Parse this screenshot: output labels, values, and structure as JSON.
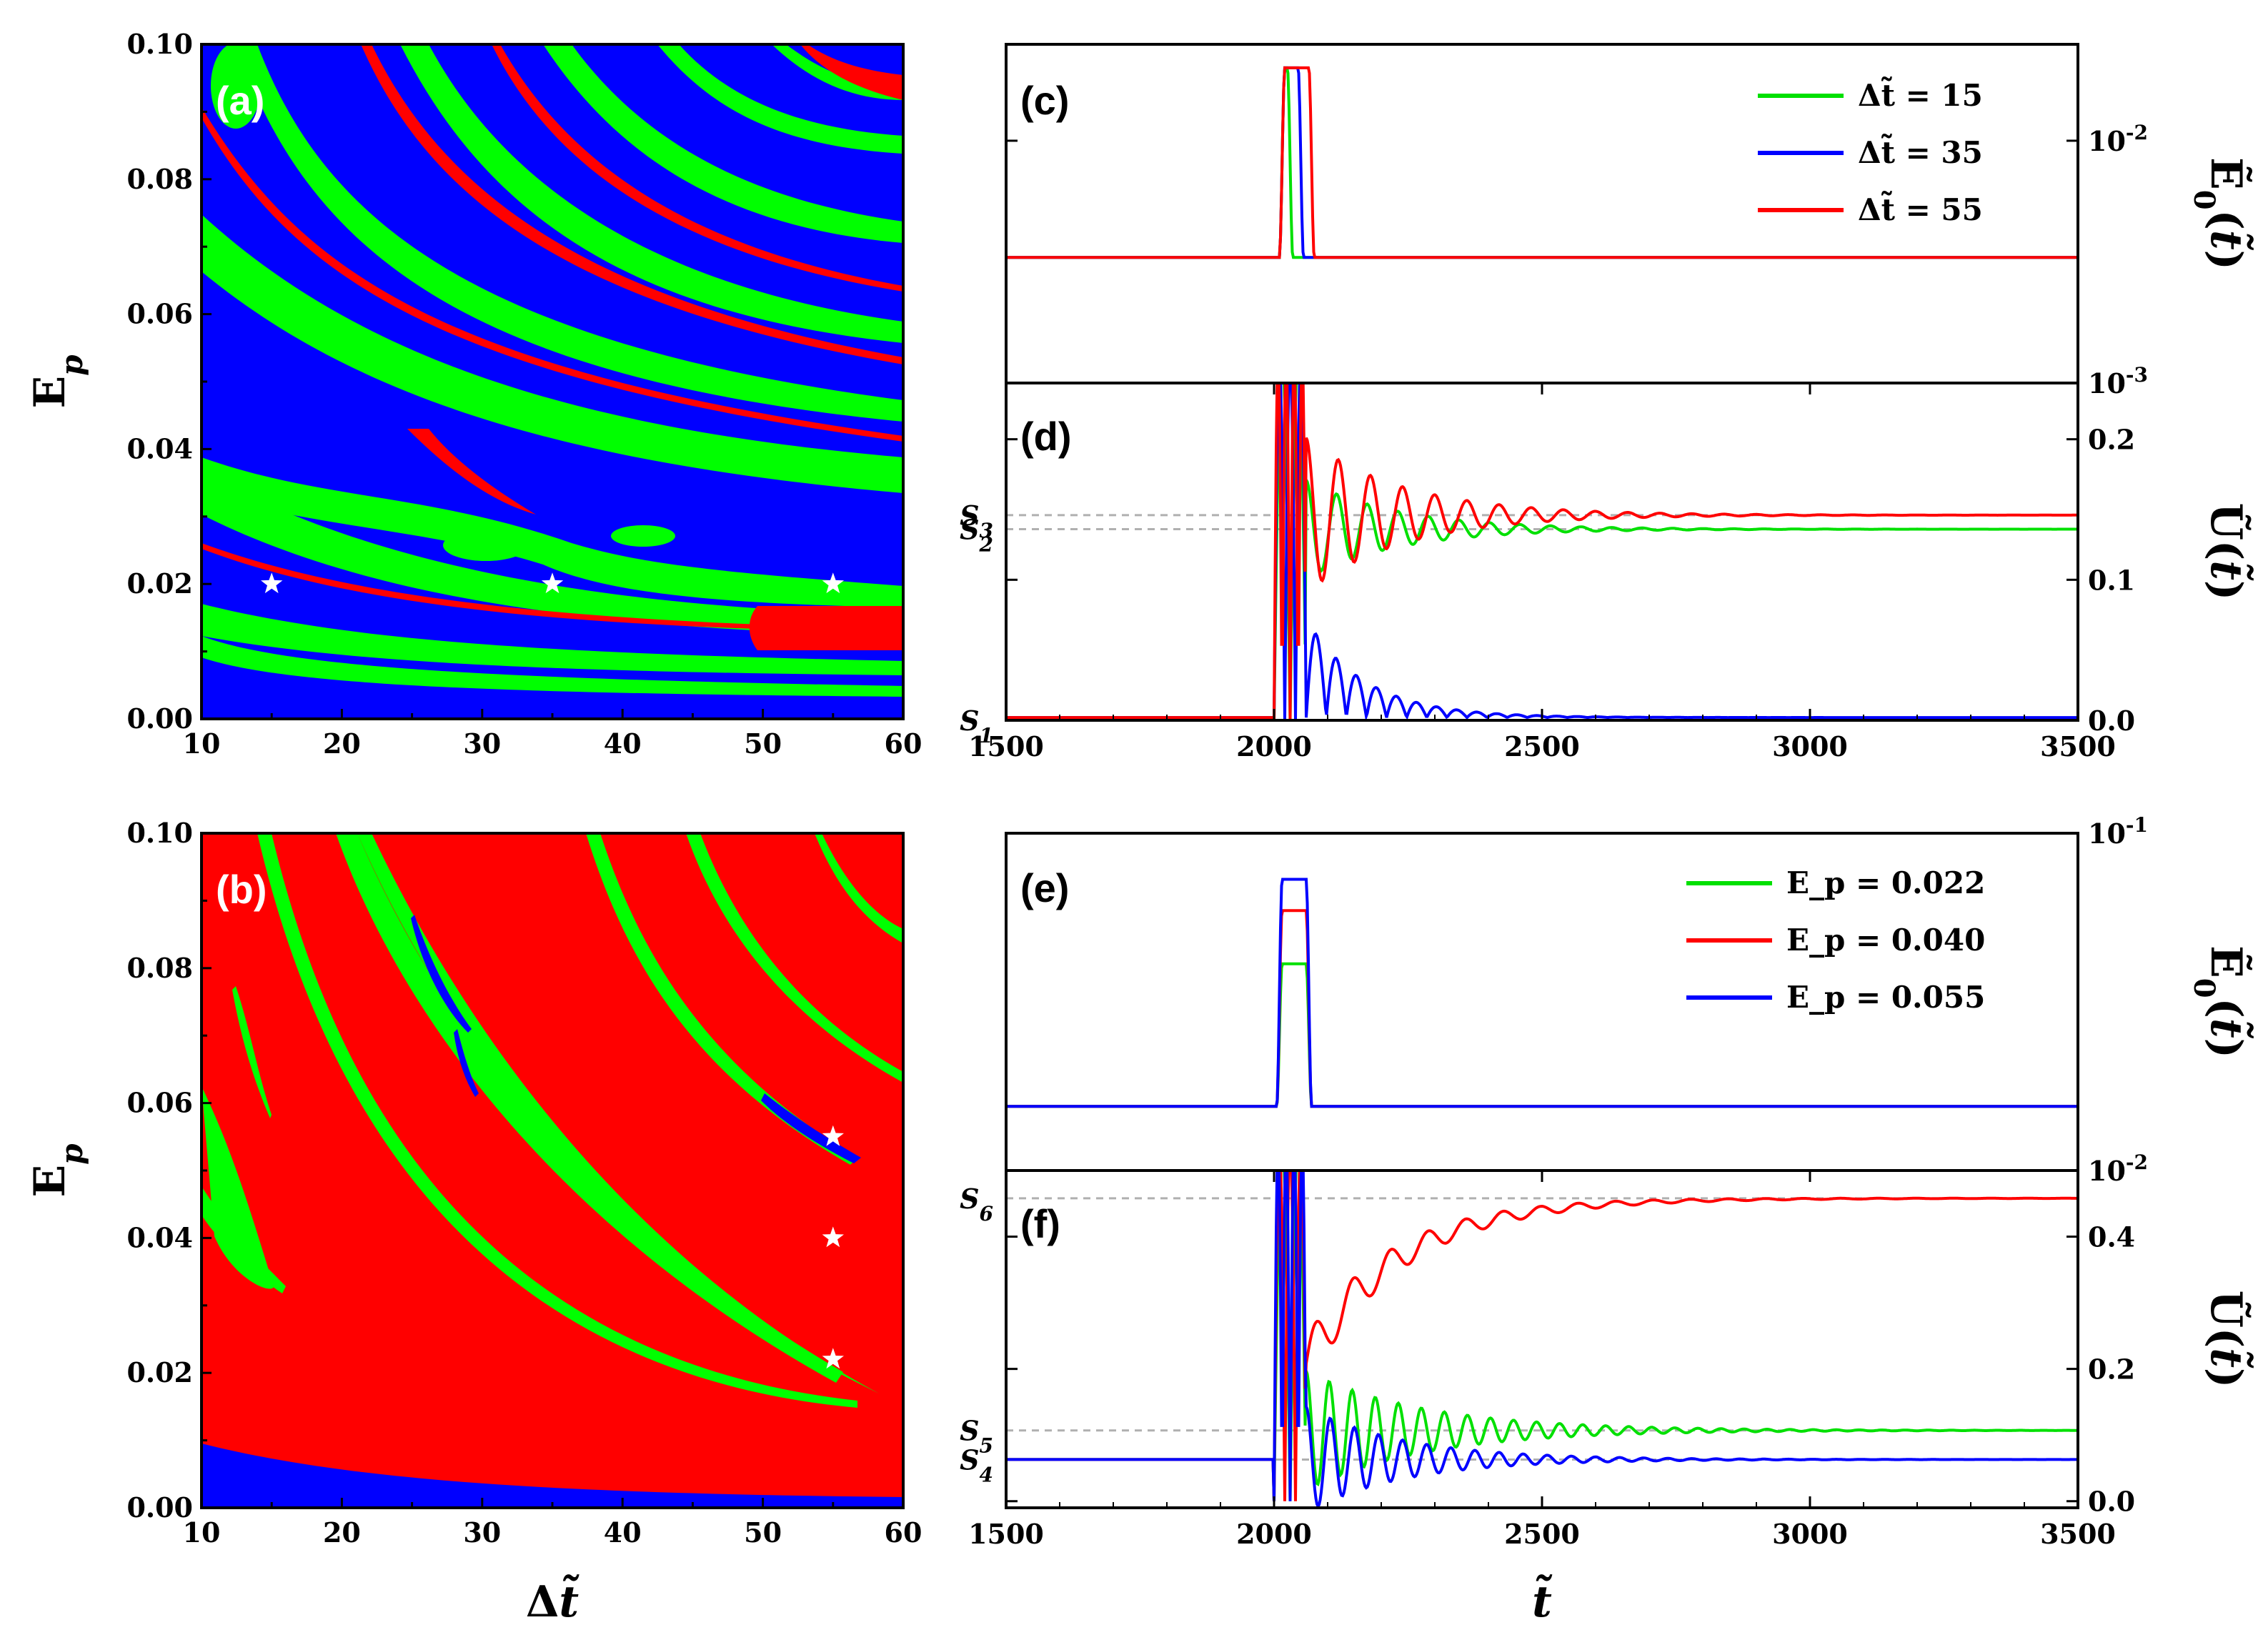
{
  "chart_data": [
    {
      "panel": "(a)",
      "type": "heatmap",
      "xlabel": "Δt̃",
      "ylabel": "E_p",
      "xlim": [
        10,
        60
      ],
      "ylim": [
        0,
        0.1
      ],
      "xticks": [
        "10",
        "20",
        "30",
        "40",
        "50",
        "60"
      ],
      "yticks": [
        "0.00",
        "0.02",
        "0.04",
        "0.06",
        "0.08",
        "0.10"
      ],
      "regions": [
        "blue",
        "green",
        "red"
      ],
      "markers": [
        {
          "x": 15,
          "y": 0.02
        },
        {
          "x": 35,
          "y": 0.02
        },
        {
          "x": 55,
          "y": 0.02
        }
      ]
    },
    {
      "panel": "(b)",
      "type": "heatmap",
      "xlabel": "Δt̃",
      "ylabel": "E_p",
      "xlim": [
        10,
        60
      ],
      "ylim": [
        0,
        0.1
      ],
      "xticks": [
        "10",
        "20",
        "30",
        "40",
        "50",
        "60"
      ],
      "yticks": [
        "0.00",
        "0.02",
        "0.04",
        "0.06",
        "0.08",
        "0.10"
      ],
      "regions": [
        "red",
        "green",
        "blue"
      ],
      "markers": [
        {
          "x": 55,
          "y": 0.022
        },
        {
          "x": 55,
          "y": 0.04
        },
        {
          "x": 55,
          "y": 0.055
        }
      ]
    },
    {
      "panel": "(c)",
      "type": "line",
      "ylabel": "Ẽ₀(t̃)",
      "yscale": "log",
      "xlim": [
        1500,
        3500
      ],
      "ylim": [
        0.001,
        0.025
      ],
      "ytick_labels": [
        "10^-3",
        "10^-2"
      ],
      "series": [
        {
          "name": "Δt̃ = 15",
          "color": "#00e000",
          "baseline": 0.0033,
          "peak": 0.02,
          "start": 2010,
          "width": 15
        },
        {
          "name": "Δt̃ = 35",
          "color": "#0000ff",
          "baseline": 0.0033,
          "peak": 0.02,
          "start": 2010,
          "width": 35
        },
        {
          "name": "Δt̃ = 55",
          "color": "#ff0000",
          "baseline": 0.0033,
          "peak": 0.02,
          "start": 2010,
          "width": 55
        }
      ]
    },
    {
      "panel": "(d)",
      "type": "line",
      "ylabel": "Ũ(t̃)",
      "xlabel": "",
      "xlim": [
        1500,
        3500
      ],
      "ylim": [
        0,
        0.24
      ],
      "xticks": [
        "1500",
        "2000",
        "2500",
        "3000",
        "3500"
      ],
      "yticks": [
        "0.0",
        "0.1",
        "0.2"
      ],
      "levels": [
        {
          "name": "S1",
          "y": 0.0
        },
        {
          "name": "S2",
          "y": 0.136
        },
        {
          "name": "S3",
          "y": 0.146
        }
      ],
      "series": [
        {
          "name": "Δt̃ = 15",
          "color": "#00e000",
          "final": 0.136,
          "amp": 0.035,
          "decay": 170,
          "period": 57
        },
        {
          "name": "Δt̃ = 35",
          "color": "#0000ff",
          "final": 0.0,
          "amp": 0.07,
          "decay": 110,
          "period": 75
        },
        {
          "name": "Δt̃ = 55",
          "color": "#ff0000",
          "final": 0.146,
          "amp": 0.055,
          "decay": 180,
          "period": 60
        }
      ]
    },
    {
      "panel": "(e)",
      "type": "line",
      "ylabel": "Ẽ₀(t̃)",
      "yscale": "log",
      "xlim": [
        1500,
        3500
      ],
      "ylim": [
        0.01,
        0.1
      ],
      "ytick_labels": [
        "10^-2",
        "10^-1"
      ],
      "series": [
        {
          "name": "E_p = 0.022",
          "color": "#00e000",
          "baseline": 0.0155,
          "peak": 0.041,
          "start": 2005,
          "width": 55
        },
        {
          "name": "E_p = 0.040",
          "color": "#ff0000",
          "baseline": 0.0155,
          "peak": 0.059,
          "start": 2005,
          "width": 55
        },
        {
          "name": "E_p = 0.055",
          "color": "#0000ff",
          "baseline": 0.0155,
          "peak": 0.073,
          "start": 2005,
          "width": 55
        }
      ]
    },
    {
      "panel": "(f)",
      "type": "line",
      "ylabel": "Ũ(t̃)",
      "xlabel": "t̃",
      "xlim": [
        1500,
        3500
      ],
      "ylim": [
        -0.01,
        0.5
      ],
      "xticks": [
        "1500",
        "2000",
        "2500",
        "3000",
        "3500"
      ],
      "yticks": [
        "0.0",
        "0.2",
        "0.4"
      ],
      "levels": [
        {
          "name": "S4",
          "y": 0.063
        },
        {
          "name": "S5",
          "y": 0.107
        },
        {
          "name": "S6",
          "y": 0.458
        }
      ],
      "series": [
        {
          "name": "E_p = 0.022",
          "color": "#00e000",
          "final": 0.107,
          "amp": 0.09,
          "decay": 220,
          "period": 43
        },
        {
          "name": "E_p = 0.040",
          "color": "#ff0000",
          "final": 0.458,
          "amp": 0.25,
          "decay": 170,
          "period": 70
        },
        {
          "name": "E_p = 0.055",
          "color": "#0000ff",
          "final": 0.063,
          "amp": 0.08,
          "decay": 180,
          "period": 45
        }
      ]
    }
  ]
}
